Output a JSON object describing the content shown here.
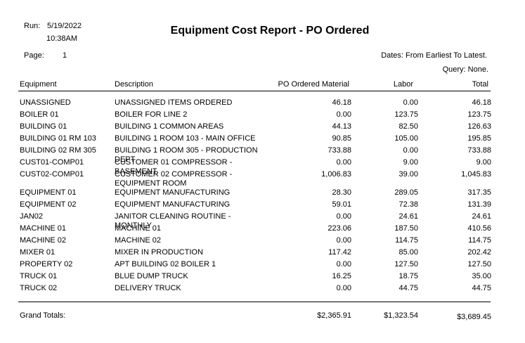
{
  "header": {
    "run_label": "Run:",
    "run_date": "5/19/2022",
    "run_time": "10:38AM",
    "page_label": "Page:",
    "page_number": "1",
    "title": "Equipment Cost Report - PO Ordered",
    "dates": "Dates: From Earliest To Latest.",
    "query": "Query: None."
  },
  "columns": {
    "equipment": "Equipment",
    "description": "Description",
    "material": "PO Ordered Material",
    "labor": "Labor",
    "total": "Total"
  },
  "rows": [
    {
      "equipment": "UNASSIGNED",
      "description": "UNASSIGNED ITEMS ORDERED",
      "material": "46.18",
      "labor": "0.00",
      "total": "46.18"
    },
    {
      "equipment": "BOILER 01",
      "description": "BOILER FOR LINE 2",
      "material": "0.00",
      "labor": "123.75",
      "total": "123.75"
    },
    {
      "equipment": "BUILDING 01",
      "description": "BUILDING 1 COMMON AREAS",
      "material": "44.13",
      "labor": "82.50",
      "total": "126.63"
    },
    {
      "equipment": "BUILDING 01 RM 103",
      "description": "BUILDING 1 ROOM 103 - MAIN OFFICE",
      "material": "90.85",
      "labor": "105.00",
      "total": "195.85"
    },
    {
      "equipment": "BUILDING 02 RM 305",
      "description": "BUILDING 1 ROOM 305 - PRODUCTION DEPT",
      "material": "733.88",
      "labor": "0.00",
      "total": "733.88"
    },
    {
      "equipment": "CUST01-COMP01",
      "description": "CUSTOMER 01 COMPRESSOR - BASEMENT",
      "material": "0.00",
      "labor": "9.00",
      "total": "9.00"
    },
    {
      "equipment": "CUST02-COMP01",
      "description": "CUSTOMER 02 COMPRESSOR - EQUIPMENT ROOM",
      "material": "1,006.83",
      "labor": "39.00",
      "total": "1,045.83"
    },
    {
      "equipment": "EQUIPMENT 01",
      "description": "EQUIPMENT MANUFACTURING",
      "material": "28.30",
      "labor": "289.05",
      "total": "317.35"
    },
    {
      "equipment": "EQUIPMENT 02",
      "description": "EQUIPMENT MANUFACTURING",
      "material": "59.01",
      "labor": "72.38",
      "total": "131.39"
    },
    {
      "equipment": "JAN02",
      "description": "JANITOR CLEANING ROUTINE - MONTHLY",
      "material": "0.00",
      "labor": "24.61",
      "total": "24.61"
    },
    {
      "equipment": "MACHINE 01",
      "description": "MACHINE 01",
      "material": "223.06",
      "labor": "187.50",
      "total": "410.56"
    },
    {
      "equipment": "MACHINE 02",
      "description": "MACHINE 02",
      "material": "0.00",
      "labor": "114.75",
      "total": "114.75"
    },
    {
      "equipment": "MIXER 01",
      "description": "MIXER IN PRODUCTION",
      "material": "117.42",
      "labor": "85.00",
      "total": "202.42"
    },
    {
      "equipment": "PROPERTY 02",
      "description": "APT BUILDING 02 BOILER 1",
      "material": "0.00",
      "labor": "127.50",
      "total": "127.50"
    },
    {
      "equipment": "TRUCK 01",
      "description": "BLUE DUMP TRUCK",
      "material": "16.25",
      "labor": "18.75",
      "total": "35.00"
    },
    {
      "equipment": "TRUCK 02",
      "description": "DELIVERY TRUCK",
      "material": "0.00",
      "labor": "44.75",
      "total": "44.75"
    }
  ],
  "totals": {
    "label": "Grand Totals:",
    "material": "$2,365.91",
    "labor": "$1,323.54",
    "total": "$3,689.45"
  }
}
